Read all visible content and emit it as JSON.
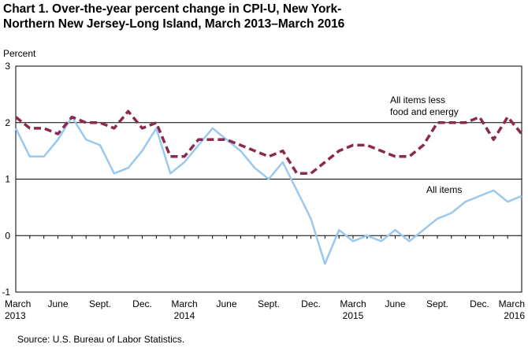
{
  "header": {
    "title_line1": "Chart 1.  Over-the-year percent change in CPI-U, New York-",
    "title_line2": "Northern New Jersey-Long Island, March 2013–March 2016"
  },
  "footer": {
    "source": "Source: U.S. Bureau of Labor Statistics."
  },
  "chart_data": {
    "type": "line",
    "title": "Chart 1.  Over-the-year percent change in CPI-U, New York-Northern New Jersey-Long Island, March 2013–March 2016",
    "ylabel": "Percent",
    "xlabel": "",
    "ylim": [
      -1,
      3
    ],
    "yticks": [
      "-1",
      "0",
      "1",
      "2",
      "3"
    ],
    "grid": "horizontal",
    "x": [
      "Mar 2013",
      "Apr 2013",
      "May 2013",
      "Jun 2013",
      "Jul 2013",
      "Aug 2013",
      "Sep 2013",
      "Oct 2013",
      "Nov 2013",
      "Dec 2013",
      "Jan 2014",
      "Feb 2014",
      "Mar 2014",
      "Apr 2014",
      "May 2014",
      "Jun 2014",
      "Jul 2014",
      "Aug 2014",
      "Sep 2014",
      "Oct 2014",
      "Nov 2014",
      "Dec 2014",
      "Jan 2015",
      "Feb 2015",
      "Mar 2015",
      "Apr 2015",
      "May 2015",
      "Jun 2015",
      "Jul 2015",
      "Aug 2015",
      "Sep 2015",
      "Oct 2015",
      "Nov 2015",
      "Dec 2015",
      "Jan 2016",
      "Feb 2016",
      "Mar 2016"
    ],
    "tick_labels": [
      {
        "line1": "March",
        "line2": "2013",
        "index": 0
      },
      {
        "line1": "June",
        "line2": "",
        "index": 3
      },
      {
        "line1": "Sept.",
        "line2": "",
        "index": 6
      },
      {
        "line1": "Dec.",
        "line2": "",
        "index": 9
      },
      {
        "line1": "March",
        "line2": "2014",
        "index": 12
      },
      {
        "line1": "June",
        "line2": "",
        "index": 15
      },
      {
        "line1": "Sept.",
        "line2": "",
        "index": 18
      },
      {
        "line1": "Dec.",
        "line2": "",
        "index": 21
      },
      {
        "line1": "March",
        "line2": "2015",
        "index": 24
      },
      {
        "line1": "June",
        "line2": "",
        "index": 27
      },
      {
        "line1": "Sept.",
        "line2": "",
        "index": 30
      },
      {
        "line1": "Dec.",
        "line2": "",
        "index": 33
      },
      {
        "line1": "March",
        "line2": "2016",
        "index": 36
      }
    ],
    "series": [
      {
        "name": "All items",
        "color": "#99c9ef",
        "style": "solid",
        "values": [
          1.9,
          1.4,
          1.4,
          1.7,
          2.1,
          1.7,
          1.6,
          1.1,
          1.2,
          1.5,
          1.9,
          1.1,
          1.3,
          1.6,
          1.9,
          1.7,
          1.5,
          1.2,
          1.0,
          1.3,
          0.8,
          0.3,
          -0.5,
          0.1,
          -0.1,
          0.0,
          -0.1,
          0.1,
          -0.1,
          0.1,
          0.3,
          0.4,
          0.6,
          0.7,
          0.8,
          0.6,
          0.7
        ]
      },
      {
        "name": "All items less food and energy",
        "color": "#8a2a4e",
        "style": "dashed",
        "values": [
          2.1,
          1.9,
          1.9,
          1.8,
          2.1,
          2.0,
          2.0,
          1.9,
          2.2,
          1.9,
          2.0,
          1.4,
          1.4,
          1.7,
          1.7,
          1.7,
          1.6,
          1.5,
          1.4,
          1.5,
          1.1,
          1.1,
          1.3,
          1.5,
          1.6,
          1.6,
          1.5,
          1.4,
          1.4,
          1.6,
          2.0,
          2.0,
          2.0,
          2.1,
          1.7,
          2.1,
          1.8
        ]
      }
    ],
    "annotations": [
      {
        "series": "All items less food and energy",
        "line1": "All items less",
        "line2": "food and energy"
      },
      {
        "series": "All items",
        "line1": "All items",
        "line2": ""
      }
    ]
  }
}
